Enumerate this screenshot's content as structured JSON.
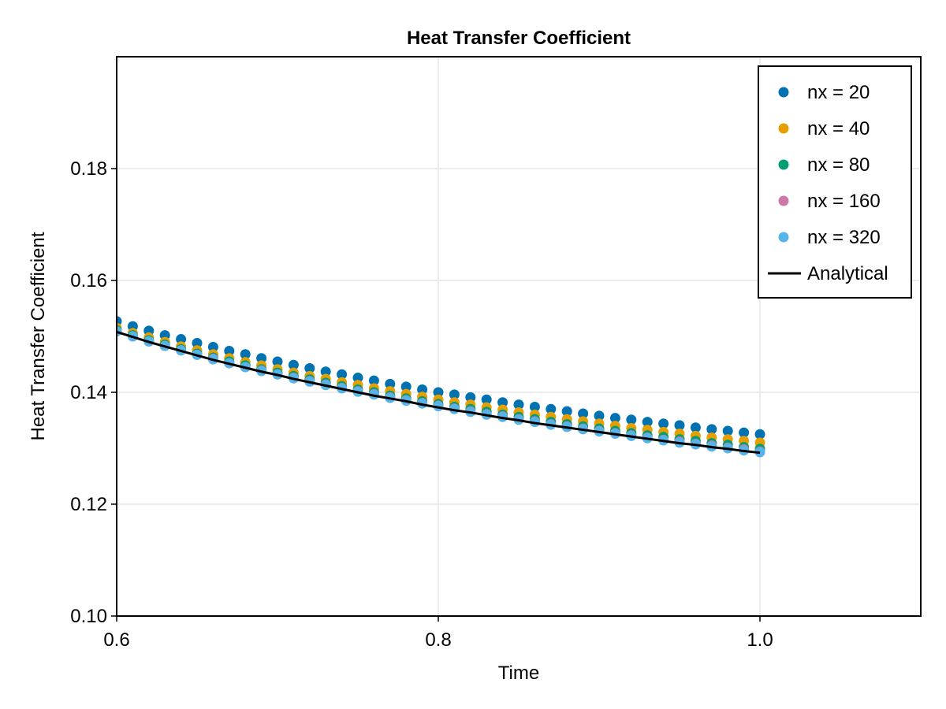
{
  "chart_data": {
    "type": "scatter",
    "title": "Heat Transfer Coefficient",
    "xlabel": "Time",
    "ylabel": "Heat Transfer Coefficient",
    "xlim": [
      0.6,
      1.1
    ],
    "ylim": [
      0.1,
      0.2
    ],
    "xticks": [
      "0.6",
      "0.8",
      "1.0"
    ],
    "yticks": [
      "0.10",
      "0.12",
      "0.14",
      "0.16",
      "0.18"
    ],
    "grid": true,
    "legend_position": "top-right",
    "x": [
      0.6,
      0.61,
      0.62,
      0.63,
      0.64,
      0.65,
      0.66,
      0.67,
      0.68,
      0.69,
      0.7,
      0.71,
      0.72,
      0.73,
      0.74,
      0.75,
      0.76,
      0.77,
      0.78,
      0.79,
      0.8,
      0.81,
      0.82,
      0.83,
      0.84,
      0.85,
      0.86,
      0.87,
      0.88,
      0.89,
      0.9,
      0.91,
      0.92,
      0.93,
      0.94,
      0.95,
      0.96,
      0.97,
      0.98,
      0.99,
      1.0
    ],
    "series": [
      {
        "name": "nx = 20",
        "color": "#0072b2",
        "marker": "circle",
        "values": [
          0.1527,
          0.1518,
          0.151,
          0.1502,
          0.1495,
          0.1488,
          0.1481,
          0.1474,
          0.1468,
          0.1461,
          0.1455,
          0.1449,
          0.1443,
          0.1437,
          0.1432,
          0.1426,
          0.1421,
          0.1415,
          0.141,
          0.1405,
          0.14,
          0.1396,
          0.1391,
          0.1387,
          0.1382,
          0.1378,
          0.1374,
          0.137,
          0.1366,
          0.1362,
          0.1358,
          0.1354,
          0.1351,
          0.1347,
          0.1344,
          0.1341,
          0.1337,
          0.1334,
          0.1331,
          0.1328,
          0.1325
        ]
      },
      {
        "name": "nx = 40",
        "color": "#e69f00",
        "marker": "circle",
        "values": [
          0.1515,
          0.1506,
          0.1498,
          0.149,
          0.1482,
          0.1475,
          0.1468,
          0.1461,
          0.1454,
          0.1448,
          0.1441,
          0.1435,
          0.1429,
          0.1424,
          0.1418,
          0.1413,
          0.1407,
          0.1402,
          0.1397,
          0.1392,
          0.1387,
          0.1382,
          0.1378,
          0.1373,
          0.1369,
          0.1364,
          0.136,
          0.1356,
          0.1352,
          0.1348,
          0.1344,
          0.134,
          0.1336,
          0.1333,
          0.1329,
          0.1326,
          0.1322,
          0.1319,
          0.1316,
          0.1313,
          0.131
        ]
      },
      {
        "name": "nx = 80",
        "color": "#009e73",
        "marker": "circle",
        "values": [
          0.1511,
          0.1502,
          0.1493,
          0.1485,
          0.1477,
          0.1469,
          0.1462,
          0.1455,
          0.1448,
          0.1441,
          0.1435,
          0.1429,
          0.1423,
          0.1417,
          0.1411,
          0.1405,
          0.14,
          0.1394,
          0.1389,
          0.1384,
          0.1379,
          0.1374,
          0.137,
          0.1365,
          0.136,
          0.1356,
          0.1352,
          0.1347,
          0.1343,
          0.1339,
          0.1335,
          0.1331,
          0.1327,
          0.1323,
          0.132,
          0.1316,
          0.1313,
          0.1309,
          0.1306,
          0.1302,
          0.1299
        ]
      },
      {
        "name": "nx = 160",
        "color": "#cc79a7",
        "marker": "circle",
        "values": [
          0.1509,
          0.15,
          0.1491,
          0.1483,
          0.1475,
          0.1467,
          0.146,
          0.1452,
          0.1445,
          0.1439,
          0.1432,
          0.1426,
          0.142,
          0.1414,
          0.1408,
          0.1402,
          0.1397,
          0.1391,
          0.1386,
          0.1381,
          0.1376,
          0.1371,
          0.1366,
          0.1361,
          0.1357,
          0.1352,
          0.1348,
          0.1343,
          0.1339,
          0.1335,
          0.1331,
          0.1327,
          0.1323,
          0.1319,
          0.1315,
          0.1312,
          0.1308,
          0.1305,
          0.1301,
          0.1298,
          0.1294
        ]
      },
      {
        "name": "nx = 320",
        "color": "#56b4e9",
        "marker": "circle",
        "values": [
          0.1509,
          0.15,
          0.1491,
          0.1483,
          0.1475,
          0.1467,
          0.1459,
          0.1452,
          0.1445,
          0.1438,
          0.1432,
          0.1425,
          0.1419,
          0.1413,
          0.1407,
          0.1401,
          0.1396,
          0.139,
          0.1385,
          0.138,
          0.1375,
          0.137,
          0.1365,
          0.136,
          0.1356,
          0.1351,
          0.1347,
          0.1342,
          0.1338,
          0.1334,
          0.133,
          0.1326,
          0.1322,
          0.1318,
          0.1314,
          0.131,
          0.1307,
          0.1303,
          0.13,
          0.1296,
          0.1293
        ]
      },
      {
        "name": "Analytical",
        "color": "#000000",
        "marker": "line",
        "values": [
          0.1508,
          0.1499,
          0.149,
          0.1482,
          0.1474,
          0.1466,
          0.1458,
          0.1451,
          0.1444,
          0.1437,
          0.1431,
          0.1424,
          0.1418,
          0.1412,
          0.1406,
          0.14,
          0.1394,
          0.1389,
          0.1384,
          0.1378,
          0.1373,
          0.1368,
          0.1364,
          0.1359,
          0.1354,
          0.135,
          0.1345,
          0.1341,
          0.1337,
          0.1333,
          0.1329,
          0.1325,
          0.1321,
          0.1317,
          0.1313,
          0.1309,
          0.1306,
          0.1302,
          0.1299,
          0.1295,
          0.1292
        ]
      }
    ]
  }
}
